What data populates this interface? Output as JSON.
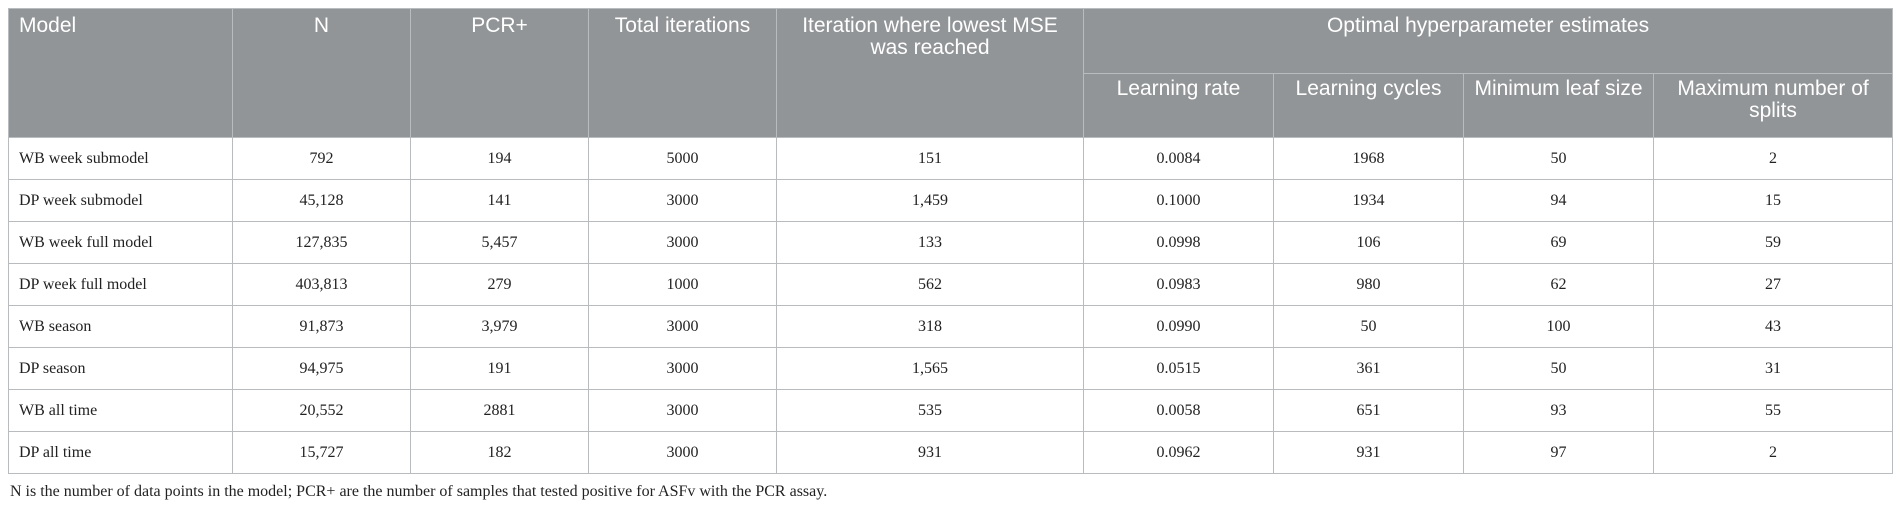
{
  "table": {
    "headers": {
      "model": "Model",
      "n": "N",
      "pcr": "PCR+",
      "total_iterations": "Total iterations",
      "iteration_lowest_mse": "Iteration where lowest MSE was reached",
      "group": "Optimal hyperparameter estimates",
      "learning_rate": "Learning rate",
      "learning_cycles": "Learning cycles",
      "min_leaf_size": "Minimum leaf size",
      "max_splits": "Maximum number of splits"
    },
    "rows": [
      {
        "model": "WB week submodel",
        "n": "792",
        "pcr": "194",
        "total": "5000",
        "iter": "151",
        "lr": "0.0084",
        "cycles": "1968",
        "leaf": "50",
        "splits": "2"
      },
      {
        "model": "DP week submodel",
        "n": "45,128",
        "pcr": "141",
        "total": "3000",
        "iter": "1,459",
        "lr": "0.1000",
        "cycles": "1934",
        "leaf": "94",
        "splits": "15"
      },
      {
        "model": "WB week full model",
        "n": "127,835",
        "pcr": "5,457",
        "total": "3000",
        "iter": "133",
        "lr": "0.0998",
        "cycles": "106",
        "leaf": "69",
        "splits": "59"
      },
      {
        "model": "DP week full model",
        "n": "403,813",
        "pcr": "279",
        "total": "1000",
        "iter": "562",
        "lr": "0.0983",
        "cycles": "980",
        "leaf": "62",
        "splits": "27"
      },
      {
        "model": "WB season",
        "n": "91,873",
        "pcr": "3,979",
        "total": "3000",
        "iter": "318",
        "lr": "0.0990",
        "cycles": "50",
        "leaf": "100",
        "splits": "43"
      },
      {
        "model": "DP season",
        "n": "94,975",
        "pcr": "191",
        "total": "3000",
        "iter": "1,565",
        "lr": "0.0515",
        "cycles": "361",
        "leaf": "50",
        "splits": "31"
      },
      {
        "model": "WB all time",
        "n": "20,552",
        "pcr": "2881",
        "total": "3000",
        "iter": "535",
        "lr": "0.0058",
        "cycles": "651",
        "leaf": "93",
        "splits": "55"
      },
      {
        "model": "DP all time",
        "n": "15,727",
        "pcr": "182",
        "total": "3000",
        "iter": "931",
        "lr": "0.0962",
        "cycles": "931",
        "leaf": "97",
        "splits": "2"
      }
    ]
  },
  "footnote": "N is the number of data points in the model; PCR+ are the number of samples that tested positive for ASFv with the PCR assay."
}
